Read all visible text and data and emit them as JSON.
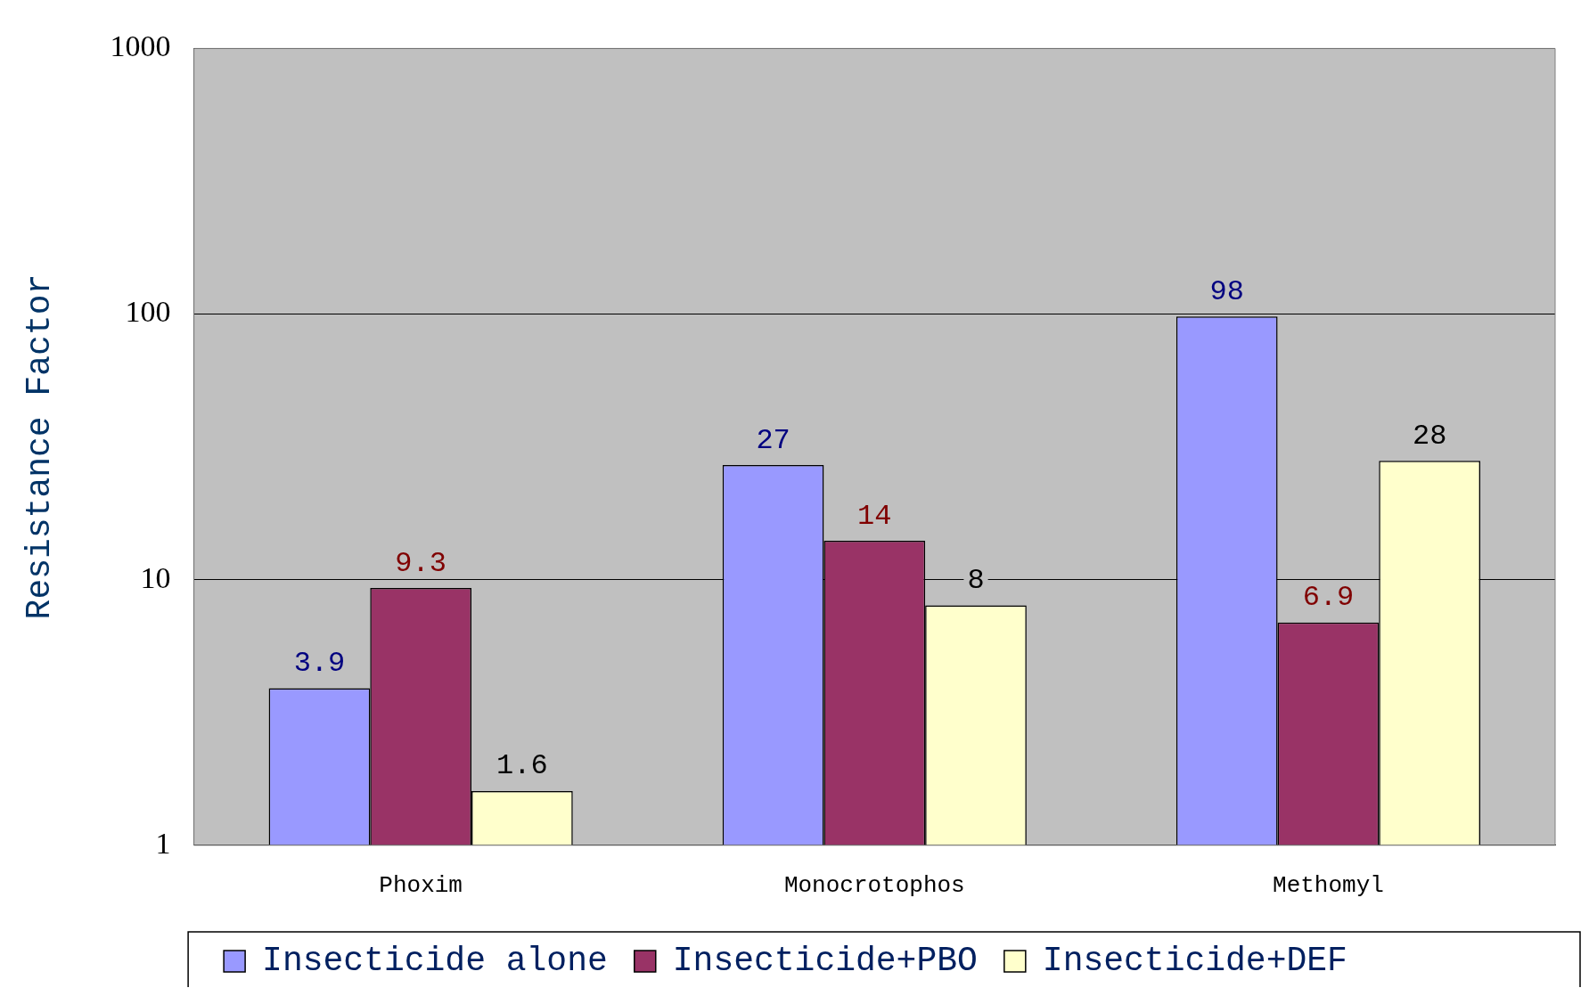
{
  "chart_data": {
    "type": "bar",
    "ylabel": "Resistance Factor",
    "categories": [
      "Phoxim",
      "Monocrotophos",
      "Methomyl"
    ],
    "series": [
      {
        "name": "Insecticide alone",
        "color": "#9999ff",
        "values": [
          3.9,
          27,
          98
        ]
      },
      {
        "name": "Insecticide+PBO",
        "color": "#993366",
        "values": [
          9.3,
          14,
          6.9
        ]
      },
      {
        "name": "Insecticide+DEF",
        "color": "#ffffcc",
        "values": [
          1.6,
          8,
          28
        ]
      }
    ],
    "log": "y",
    "ylim": [
      1,
      1000
    ],
    "yticks": [
      1,
      10,
      100,
      1000
    ],
    "grid": "y",
    "legend": "bottom",
    "data_labels": true
  }
}
